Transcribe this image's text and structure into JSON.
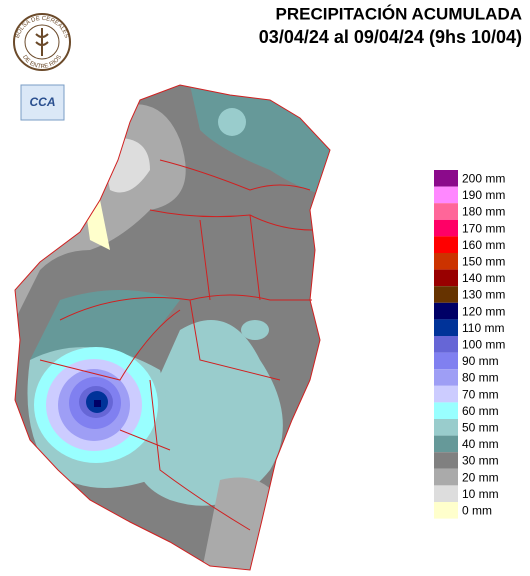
{
  "header": {
    "logo_top": "BOLSA DE CEREALES",
    "logo_bottom": "DE ENTRE RIOS",
    "badge": "CCA",
    "title": "PRECIPITACIÓN ACUMULADA",
    "subtitle": "03/04/24 al 09/04/24 (9hs 10/04)"
  },
  "legend": [
    {
      "label": "200 mm",
      "color": "#8b0a8b"
    },
    {
      "label": "190 mm",
      "color": "#ff88ff"
    },
    {
      "label": "180 mm",
      "color": "#ff6699"
    },
    {
      "label": "170 mm",
      "color": "#ff0066"
    },
    {
      "label": "160 mm",
      "color": "#ff0000"
    },
    {
      "label": "150 mm",
      "color": "#cc3300"
    },
    {
      "label": "140 mm",
      "color": "#990000"
    },
    {
      "label": "130 mm",
      "color": "#663300"
    },
    {
      "label": "120 mm",
      "color": "#000066"
    },
    {
      "label": "110 mm",
      "color": "#003399"
    },
    {
      "label": "100 mm",
      "color": "#6666d6"
    },
    {
      "label": "90 mm",
      "color": "#8080f0"
    },
    {
      "label": "80 mm",
      "color": "#9e9ef5"
    },
    {
      "label": "70 mm",
      "color": "#ccccff"
    },
    {
      "label": "60 mm",
      "color": "#99ffff"
    },
    {
      "label": "50 mm",
      "color": "#99cccc"
    },
    {
      "label": "40 mm",
      "color": "#669999"
    },
    {
      "label": "30 mm",
      "color": "#808080"
    },
    {
      "label": "20 mm",
      "color": "#aaaaaa"
    },
    {
      "label": "10 mm",
      "color": "#dddddd"
    },
    {
      "label": "0 mm",
      "color": "#ffffcc"
    }
  ]
}
